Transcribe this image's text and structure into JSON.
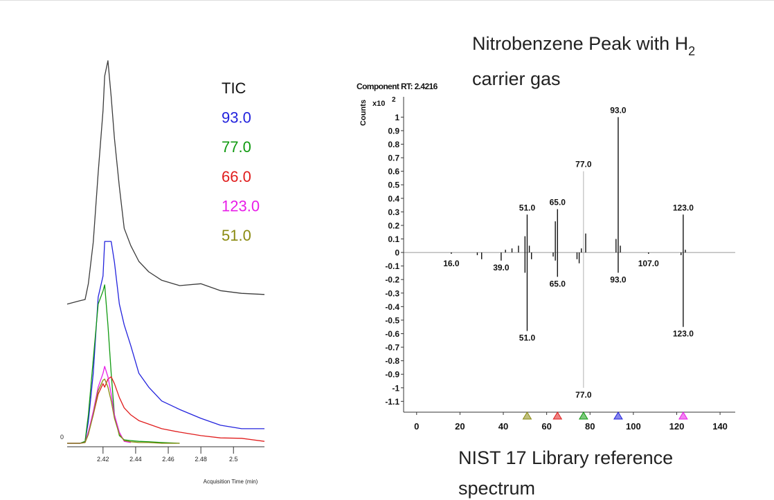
{
  "annotations": [
    "Nitrobenzene Peak with H",
    "2",
    "carrier gas",
    "NIST 17 Library reference",
    "spectrum"
  ],
  "chart_data": [
    {
      "type": "line",
      "x_label": "Acquisition Time (min)",
      "x": [
        2.398,
        2.406,
        2.409,
        2.411,
        2.414,
        2.417,
        2.42,
        2.421,
        2.423,
        2.425,
        2.427,
        2.43,
        2.433,
        2.437,
        2.442,
        2.448,
        2.456,
        2.467,
        2.48,
        2.492,
        2.505,
        2.519
      ],
      "xlim": [
        2.398,
        2.519
      ],
      "xticks": [
        2.42,
        2.44,
        2.46,
        2.48,
        2.5
      ],
      "ylim": [
        0,
        100
      ],
      "yticks": [
        0
      ],
      "series": [
        {
          "name": "TIC",
          "color": "#3a3a3a",
          "values": [
            36.2,
            37.1,
            37.4,
            41.5,
            52.3,
            70.3,
            86.5,
            95.5,
            99.5,
            90.1,
            79.3,
            66.7,
            55.9,
            51.4,
            47.3,
            44.6,
            42.4,
            41.0,
            41.5,
            39.7,
            39.0,
            38.7
          ]
        },
        {
          "name": "93.0",
          "color": "#2222dd",
          "values": [
            0,
            0,
            0.5,
            5.6,
            18.2,
            38,
            43.5,
            52.5,
            52.5,
            52.5,
            47.1,
            36.2,
            30.8,
            25.4,
            18.2,
            14.6,
            11.0,
            8.8,
            6.5,
            4.7,
            3.8,
            3.8
          ]
        },
        {
          "name": "77.0",
          "color": "#109a10",
          "values": [
            0,
            0,
            0.5,
            7.4,
            21.8,
            36.2,
            39.6,
            41.2,
            30.8,
            18.2,
            7.4,
            2.0,
            0.9,
            0.7,
            0.5,
            0.4,
            0.2,
            0,
            null,
            null,
            null,
            null
          ]
        },
        {
          "name": "66.0",
          "color": "#e01c1c",
          "values": [
            0,
            0,
            0.2,
            2.9,
            7.4,
            12.8,
            15.5,
            14.6,
            16.7,
            17.3,
            15.5,
            11.9,
            9.2,
            7.4,
            5.9,
            5.0,
            3.8,
            2.9,
            2.0,
            1.4,
            1.3,
            0.5
          ]
        },
        {
          "name": "123.0",
          "color": "#e81ce8",
          "values": [
            0,
            0,
            0.2,
            2.9,
            8.3,
            14.6,
            18.2,
            20.0,
            17.3,
            12.8,
            7.4,
            2.9,
            0.5,
            0.2,
            null,
            null,
            null,
            null,
            null,
            null,
            null,
            null
          ]
        },
        {
          "name": "51.0",
          "color": "#8a8a10",
          "values": [
            0,
            0,
            0.2,
            2.3,
            7.4,
            13.7,
            16.4,
            16.7,
            14.6,
            11.0,
            6.5,
            2.3,
            0.7,
            0.4,
            0.2,
            0.2,
            0,
            0,
            null,
            null,
            null,
            null
          ]
        }
      ]
    },
    {
      "type": "bar",
      "title": "Component RT: 2.4216",
      "y_label": "Counts",
      "y_unit": "x10",
      "y_unit_exp": "2",
      "x": [
        16,
        28,
        30,
        39,
        41,
        44,
        47,
        50,
        50,
        51,
        51,
        52,
        53,
        63,
        64,
        64,
        65,
        65,
        74,
        75,
        76,
        77,
        77,
        78,
        92,
        93,
        93,
        94,
        107,
        122,
        123,
        123,
        124
      ],
      "values": [
        -0.01,
        -0.02,
        -0.05,
        -0.06,
        0.02,
        0.03,
        0.05,
        0.12,
        -0.15,
        0.28,
        -0.58,
        0.05,
        -0.05,
        -0.03,
        0.23,
        -0.06,
        0.32,
        -0.18,
        -0.05,
        -0.08,
        0.03,
        0.6,
        -1.0,
        0.14,
        0.1,
        1.0,
        -0.15,
        0.05,
        -0.01,
        -0.02,
        0.28,
        -0.55,
        0.02
      ],
      "x_labels": [
        "16.0",
        null,
        null,
        "39.0",
        null,
        null,
        null,
        null,
        null,
        "51.0",
        "51.0",
        null,
        null,
        null,
        null,
        null,
        "65.0",
        "65.0",
        null,
        null,
        null,
        "77.0",
        "77.0",
        null,
        null,
        "93.0",
        "93.0",
        null,
        "107.0",
        null,
        "123.0",
        "123.0",
        null
      ],
      "color": "#111111",
      "highlight": {
        "x": 77,
        "color": "#b0b0b0"
      },
      "xlim": [
        -6,
        147
      ],
      "xticks": [
        0,
        20,
        40,
        60,
        80,
        100,
        120,
        140
      ],
      "ylim": [
        -1.18,
        1.15
      ],
      "yticks": [
        1,
        0.9,
        0.8,
        0.7,
        0.6,
        0.5,
        0.4,
        0.3,
        0.2,
        0.1,
        0,
        -0.1,
        -0.2,
        -0.3,
        -0.4,
        -0.5,
        -0.6,
        -0.7,
        -0.8,
        -0.9,
        -1,
        -1.1
      ],
      "ion_markers": {
        "x": [
          51,
          65,
          77,
          93,
          123
        ],
        "colors": [
          "#8a8a10",
          "#e01c1c",
          "#109a10",
          "#2222dd",
          "#e81ce8"
        ]
      }
    }
  ]
}
